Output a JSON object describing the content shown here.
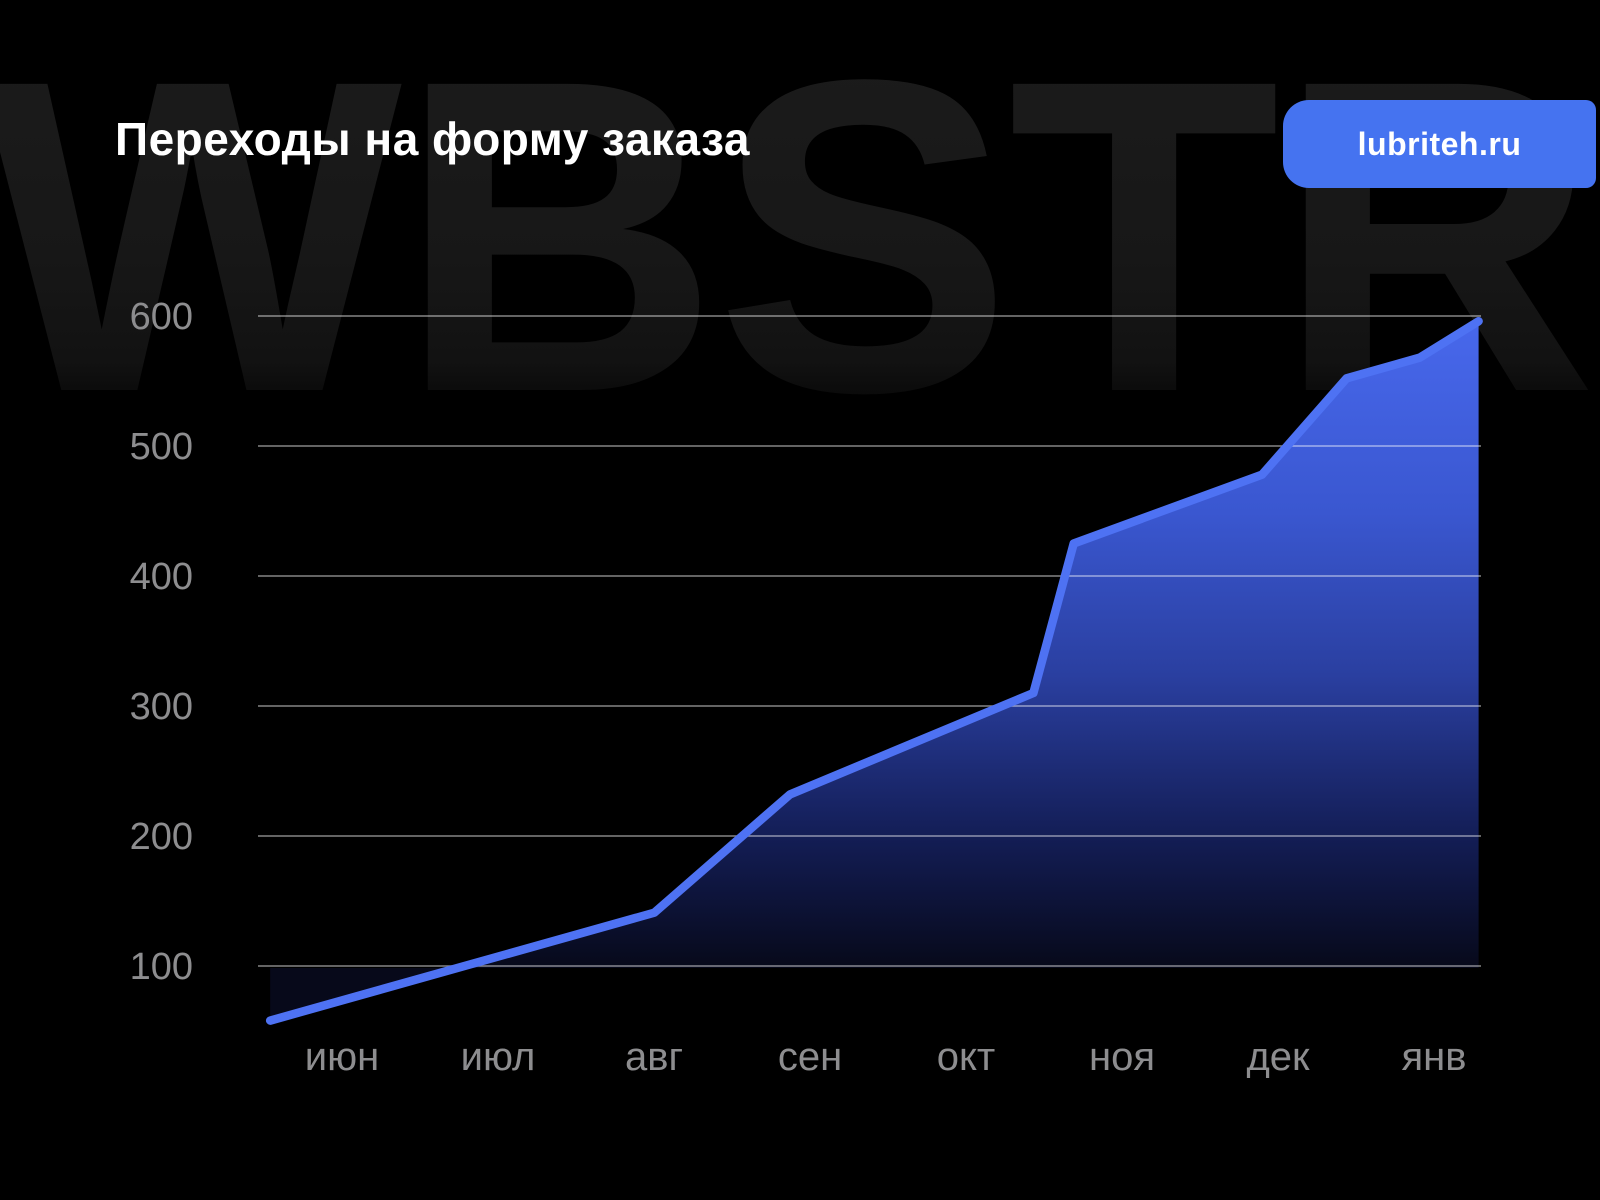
{
  "page": {
    "title": "Переходы на форму заказа",
    "badge_label": "lubriteh.ru",
    "watermark": "WBSTR"
  },
  "colors": {
    "background": "#000000",
    "badge_blue": "#4573F0",
    "line_blue": "#4E72F3",
    "area_top": "#4868EC",
    "area_bottom": "#07091A",
    "grid_gray": "#8A8A8E",
    "axis_label_gray": "#8D8D8F",
    "title_white": "#FFFFFF",
    "watermark_gray": "#1A1A1A"
  },
  "chart_data": {
    "type": "area",
    "title": "Переходы на форму заказа",
    "xlabel": "",
    "ylabel": "",
    "x_labels": [
      "июн",
      "июл",
      "авг",
      "сен",
      "окт",
      "ноя",
      "дек",
      "янв"
    ],
    "y_ticks": [
      600,
      500,
      400,
      300,
      200,
      100
    ],
    "ylim": [
      50,
      620
    ],
    "grid": "horizontal",
    "legend": "none",
    "series": [
      {
        "name": "Переходы на форму заказа",
        "points": [
          {
            "x": 0.01,
            "value": 58
          },
          {
            "x": 0.324,
            "value": 141
          },
          {
            "x": 0.435,
            "value": 232
          },
          {
            "x": 0.634,
            "value": 310
          },
          {
            "x": 0.667,
            "value": 425
          },
          {
            "x": 0.821,
            "value": 478
          },
          {
            "x": 0.89,
            "value": 552
          },
          {
            "x": 0.95,
            "value": 568
          },
          {
            "x": 0.998,
            "value": 596
          }
        ]
      }
    ]
  }
}
